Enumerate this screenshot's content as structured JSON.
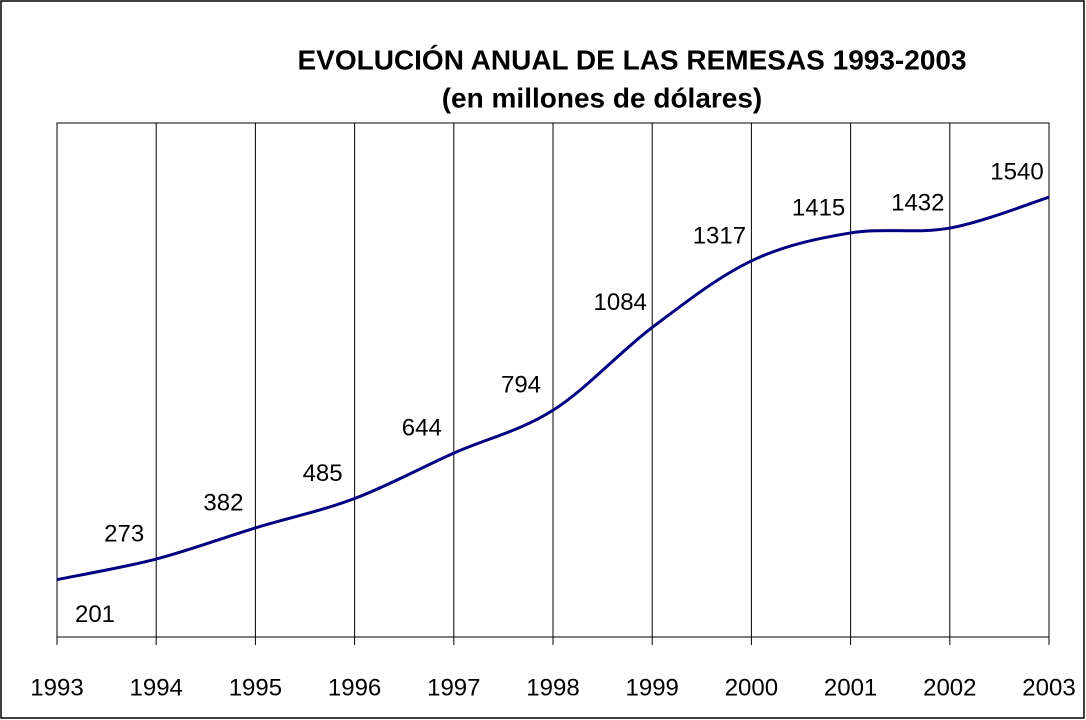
{
  "chart_data": {
    "type": "line",
    "title": "EVOLUCIÓN ANUAL DE LAS REMESAS 1993-2003",
    "subtitle": "(en millones de dólares)",
    "x": [
      1993,
      1994,
      1995,
      1996,
      1997,
      1998,
      1999,
      2000,
      2001,
      2002,
      2003
    ],
    "series": [
      {
        "name": "Remesas",
        "color": "#000080",
        "values": [
          201,
          273,
          382,
          485,
          644,
          794,
          1084,
          1317,
          1415,
          1432,
          1540
        ]
      }
    ],
    "xlim": [
      1993,
      2003
    ],
    "xticks": [
      1993,
      1994,
      1995,
      1996,
      1997,
      1998,
      1999,
      2000,
      2001,
      2002,
      2003
    ],
    "ylim": [
      0,
      1800
    ],
    "grid": true,
    "legend": false
  }
}
